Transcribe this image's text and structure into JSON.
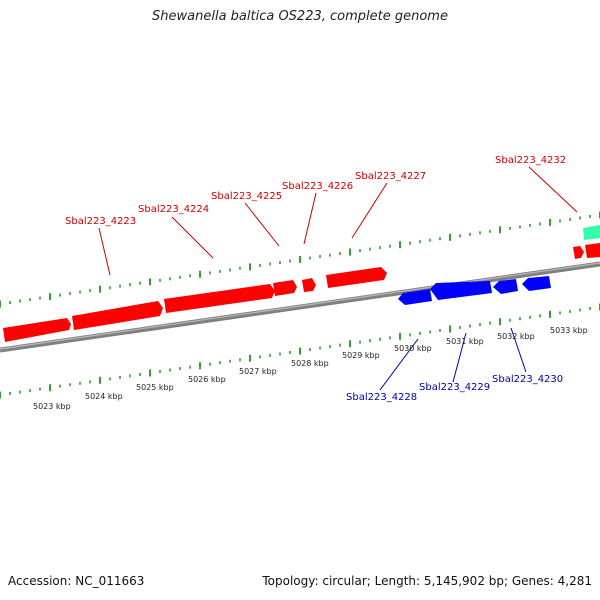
{
  "title": "Shewanella baltica OS223, complete genome",
  "footer": {
    "accession": "Accession: NC_011663",
    "summary": "Topology: circular; Length: 5,145,902 bp; Genes: 4,281"
  },
  "colors": {
    "forward_gene": "#ff0000",
    "reverse_gene": "#0000ff",
    "other_feature": "#33ffaa",
    "tick": "#008800",
    "backbone": "#808080",
    "forward_label": "#cc0000",
    "reverse_label": "#0000aa"
  },
  "scale_labels": [
    "5023 kbp",
    "5024 kbp",
    "5025 kbp",
    "5026 kbp",
    "5027 kbp",
    "5028 kbp",
    "5029 kbp",
    "5030 kbp",
    "5031 kbp",
    "5032 kbp",
    "5033 kbp"
  ],
  "forward_gene_labels": [
    "Sbal223_4223",
    "Sbal223_4224",
    "Sbal223_4225",
    "Sbal223_4226",
    "Sbal223_4227",
    "Sbal223_4232"
  ],
  "reverse_gene_labels": [
    "Sbal223_4228",
    "Sbal223_4229",
    "Sbal223_4230"
  ]
}
